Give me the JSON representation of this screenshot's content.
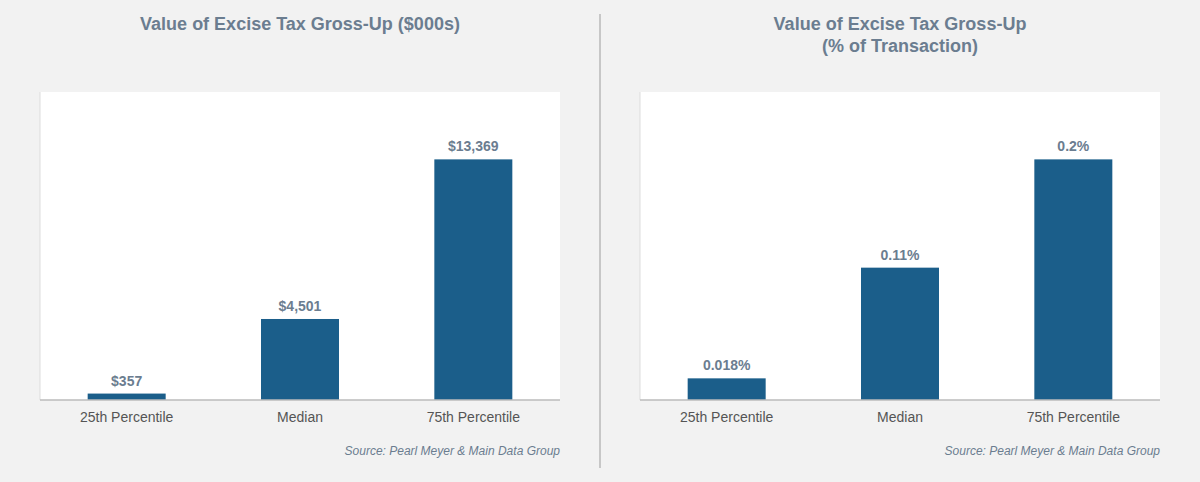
{
  "chart_data": [
    {
      "type": "bar",
      "title": "Value of Excise Tax Gross-Up ($000s)",
      "categories": [
        "25th Percentile",
        "Median",
        "75th Percentile"
      ],
      "values": [
        357,
        4501,
        13369
      ],
      "value_labels": [
        "$357",
        "$4,501",
        "$13,369"
      ],
      "color": "#1B5E8A",
      "ylim": [
        0,
        17112.32
      ],
      "yticks": [],
      "tick_labels": "x",
      "data_labels": true,
      "grid": false,
      "annotations": [
        "Source: Pearl Meyer & Main Data Group"
      ]
    },
    {
      "type": "bar",
      "title": "Value of Excise Tax Gross-Up\n(% of Transaction)",
      "categories": [
        "25th Percentile",
        "Median",
        "75th Percentile"
      ],
      "values": [
        0.018,
        0.11,
        0.2
      ],
      "value_labels": [
        "0.018%",
        "0.11%",
        "0.2%"
      ],
      "color": "#1B5E8A",
      "ylim": [
        0,
        0.256
      ],
      "yticks": [],
      "tick_labels": "x",
      "data_labels": true,
      "grid": false,
      "annotations": [
        "Source: Pearl Meyer & Main Data Group"
      ]
    }
  ]
}
